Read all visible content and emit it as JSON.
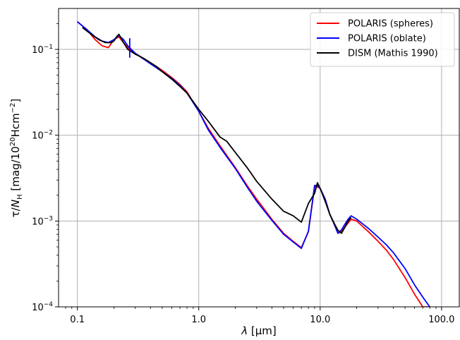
{
  "chart_data": {
    "type": "line",
    "xscale": "log",
    "yscale": "log",
    "xlim": [
      0.07,
      140
    ],
    "ylim": [
      0.0001,
      0.3
    ],
    "grid": true,
    "legend_position": "top-right",
    "x_ticks": [
      {
        "value": 0.1,
        "label": "0.1"
      },
      {
        "value": 1,
        "label": "1.0"
      },
      {
        "value": 10,
        "label": "10.0"
      },
      {
        "value": 100,
        "label": "100.0"
      }
    ],
    "y_ticks": [
      {
        "value": 0.1,
        "base": "10",
        "exp": "−1"
      },
      {
        "value": 0.01,
        "base": "10",
        "exp": "−2"
      },
      {
        "value": 0.001,
        "base": "10",
        "exp": "−3"
      },
      {
        "value": 0.0001,
        "base": "10",
        "exp": "−4"
      }
    ],
    "xlabel": {
      "greek": "λ",
      "rest": " [μm]"
    },
    "ylabel": {
      "tau": "τ",
      "slash": "/",
      "n": "N",
      "sub": "H",
      "pre": " [mag/10",
      "sup1": "20",
      "mid": "Hcm",
      "sup2": "−2",
      "post": "]"
    },
    "series": [
      {
        "name": "POLARIS (spheres)",
        "color": "#ff0000",
        "x": [
          0.1,
          0.12,
          0.14,
          0.16,
          0.18,
          0.2,
          0.22,
          0.24,
          0.26,
          0.3,
          0.4,
          0.5,
          0.6,
          0.7,
          0.8,
          1.0,
          1.2,
          1.5,
          2.0,
          2.5,
          3.0,
          4.0,
          5.0,
          6.0,
          7.0,
          8.0,
          9.0,
          9.5,
          10.0,
          11.0,
          12.0,
          13.0,
          14.0,
          15.0,
          16.0,
          17.0,
          18.0,
          20.0,
          25.0,
          30.0,
          35.0,
          40.0,
          50.0,
          60.0,
          70.0,
          80.0
        ],
        "y": [
          0.21,
          0.17,
          0.13,
          0.11,
          0.105,
          0.13,
          0.14,
          0.12,
          0.105,
          0.09,
          0.07,
          0.057,
          0.047,
          0.039,
          0.032,
          0.019,
          0.012,
          0.0075,
          0.0042,
          0.0026,
          0.0018,
          0.00105,
          0.00072,
          0.00058,
          0.00049,
          0.00075,
          0.0025,
          0.0025,
          0.0024,
          0.0018,
          0.0012,
          0.00095,
          0.00072,
          0.00075,
          0.00085,
          0.00095,
          0.00105,
          0.001,
          0.00075,
          0.00058,
          0.00046,
          0.00036,
          0.00022,
          0.00014,
          0.0001,
          0.0001
        ]
      },
      {
        "name": "POLARIS (oblate)",
        "color": "#0000ff",
        "x": [
          0.1,
          0.12,
          0.14,
          0.16,
          0.18,
          0.2,
          0.22,
          0.24,
          0.26,
          0.3,
          0.4,
          0.5,
          0.6,
          0.7,
          0.8,
          1.0,
          1.2,
          1.5,
          2.0,
          2.5,
          3.0,
          4.0,
          5.0,
          6.0,
          7.0,
          8.0,
          9.0,
          9.5,
          10.0,
          11.0,
          12.0,
          13.0,
          14.0,
          15.0,
          16.0,
          17.0,
          18.0,
          20.0,
          25.0,
          30.0,
          35.0,
          40.0,
          50.0,
          60.0,
          70.0,
          80.0
        ],
        "y": [
          0.21,
          0.17,
          0.14,
          0.125,
          0.12,
          0.13,
          0.145,
          0.13,
          0.11,
          0.09,
          0.068,
          0.055,
          0.046,
          0.038,
          0.031,
          0.019,
          0.0115,
          0.0072,
          0.0041,
          0.0025,
          0.0017,
          0.00102,
          0.0007,
          0.00057,
          0.00048,
          0.00076,
          0.0026,
          0.0026,
          0.0024,
          0.0018,
          0.0012,
          0.00093,
          0.00072,
          0.00079,
          0.00092,
          0.00105,
          0.00115,
          0.00105,
          0.00082,
          0.00065,
          0.00053,
          0.00043,
          0.00028,
          0.00018,
          0.00013,
          0.0001
        ]
      },
      {
        "name": "DISM (Mathis 1990)",
        "color": "#000000",
        "x": [
          0.11,
          0.13,
          0.15,
          0.17,
          0.19,
          0.2,
          0.21,
          0.22,
          0.24,
          0.26,
          0.3,
          0.35,
          0.4,
          0.45,
          0.5,
          0.6,
          0.7,
          0.8,
          1.0,
          1.2,
          1.5,
          1.7,
          2.0,
          2.5,
          3.0,
          4.0,
          5.0,
          6.0,
          7.0,
          8.0,
          9.0,
          9.5,
          10.0,
          11.0,
          12.0,
          13.0,
          14.0,
          15.0,
          16.0,
          17.0,
          18.0
        ],
        "y": [
          0.18,
          0.15,
          0.13,
          0.12,
          0.12,
          0.125,
          0.14,
          0.15,
          0.12,
          0.1,
          0.088,
          0.079,
          0.07,
          0.063,
          0.055,
          0.045,
          0.037,
          0.031,
          0.02,
          0.0145,
          0.0095,
          0.0085,
          0.0063,
          0.0042,
          0.0029,
          0.0018,
          0.0013,
          0.00115,
          0.00097,
          0.0016,
          0.0021,
          0.0028,
          0.0024,
          0.0017,
          0.0012,
          0.00095,
          0.00078,
          0.00072,
          0.00085,
          0.001,
          0.0011
        ]
      }
    ],
    "annotations": [
      {
        "type": "vertical-marker",
        "color": "#0000ff",
        "x": 0.27,
        "y_low": 0.08,
        "y_high": 0.135
      }
    ]
  }
}
